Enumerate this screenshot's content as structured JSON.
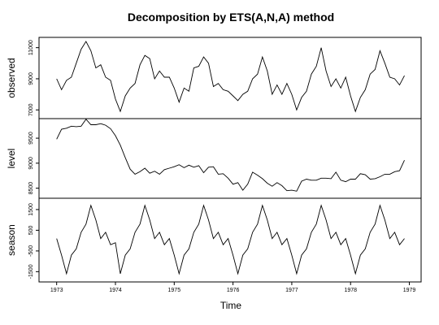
{
  "chart_data": {
    "type": "line",
    "title": "Decomposition by ETS(A,N,A) method",
    "xlabel": "Time",
    "x_ticks": [
      "1973",
      "1974",
      "1975",
      "1976",
      "1977",
      "1978",
      "1979"
    ],
    "x": [
      1973.0,
      1973.083,
      1973.167,
      1973.25,
      1973.333,
      1973.417,
      1973.5,
      1973.583,
      1973.667,
      1973.75,
      1973.833,
      1973.917,
      1974.0,
      1974.083,
      1974.167,
      1974.25,
      1974.333,
      1974.417,
      1974.5,
      1974.583,
      1974.667,
      1974.75,
      1974.833,
      1974.917,
      1975.0,
      1975.083,
      1975.167,
      1975.25,
      1975.333,
      1975.417,
      1975.5,
      1975.583,
      1975.667,
      1975.75,
      1975.833,
      1975.917,
      1976.0,
      1976.083,
      1976.167,
      1976.25,
      1976.333,
      1976.417,
      1976.5,
      1976.583,
      1976.667,
      1976.75,
      1976.833,
      1976.917,
      1977.0,
      1977.083,
      1977.167,
      1977.25,
      1977.333,
      1977.417,
      1977.5,
      1977.583,
      1977.667,
      1977.75,
      1977.833,
      1977.917,
      1978.0,
      1978.083,
      1978.167,
      1978.25,
      1978.333,
      1978.417,
      1978.5,
      1978.583,
      1978.667,
      1978.75,
      1978.833,
      1978.917
    ],
    "panels": [
      {
        "ylabel": "observed",
        "yticks": [
          7000,
          9000,
          11000
        ],
        "ylim": [
          6700,
          11400
        ],
        "values": [
          9000,
          8300,
          8900,
          9100,
          10000,
          10900,
          11400,
          10800,
          9700,
          9900,
          9100,
          8900,
          7700,
          6900,
          7900,
          8400,
          8700,
          9900,
          10500,
          10300,
          9000,
          9500,
          9100,
          9100,
          8400,
          7500,
          8400,
          8200,
          9700,
          9800,
          10400,
          10000,
          8500,
          8700,
          8300,
          8200,
          7900,
          7600,
          8000,
          8200,
          9000,
          9300,
          10400,
          9500,
          8000,
          8600,
          8000,
          8700,
          8000,
          7000,
          7800,
          8200,
          9300,
          9800,
          11000,
          9500,
          8500,
          9000,
          8400,
          9100,
          7900,
          6900,
          7800,
          8300,
          9300,
          9600,
          10800,
          10000,
          9100,
          9000,
          8600,
          9200
        ]
      },
      {
        "ylabel": "level",
        "yticks": [
          8500,
          9000,
          9500
        ],
        "ylim": [
          8380,
          9810
        ],
        "values": [
          9480,
          9680,
          9700,
          9740,
          9730,
          9740,
          9880,
          9770,
          9770,
          9790,
          9760,
          9690,
          9550,
          9360,
          9110,
          8880,
          8780,
          8830,
          8900,
          8800,
          8840,
          8780,
          8870,
          8900,
          8930,
          8970,
          8910,
          8960,
          8920,
          8950,
          8810,
          8920,
          8930,
          8780,
          8790,
          8700,
          8580,
          8610,
          8460,
          8580,
          8820,
          8760,
          8690,
          8600,
          8540,
          8610,
          8550,
          8450,
          8460,
          8440,
          8640,
          8680,
          8660,
          8660,
          8700,
          8700,
          8690,
          8820,
          8660,
          8630,
          8680,
          8680,
          8790,
          8770,
          8680,
          8690,
          8730,
          8780,
          8780,
          8830,
          8850,
          9060
        ]
      },
      {
        "ylabel": "season",
        "yticks": [
          -1500,
          -500,
          500,
          1500
        ],
        "ylim": [
          -1800,
          1850
        ],
        "values": [
          100,
          -700,
          -1600,
          -700,
          -400,
          400,
          800,
          1700,
          1000,
          100,
          400,
          -200,
          -100,
          -1600,
          -700,
          -400,
          400,
          800,
          1700,
          1000,
          100,
          400,
          -200,
          100,
          -700,
          -1600,
          -700,
          -400,
          400,
          800,
          1700,
          1000,
          100,
          400,
          -200,
          100,
          -700,
          -1600,
          -700,
          -400,
          400,
          800,
          1700,
          1000,
          100,
          400,
          -200,
          100,
          -700,
          -1600,
          -700,
          -400,
          400,
          800,
          1700,
          1000,
          100,
          400,
          -200,
          100,
          -700,
          -1600,
          -700,
          -400,
          400,
          800,
          1700,
          1000,
          100,
          400,
          -200,
          100
        ]
      }
    ]
  }
}
